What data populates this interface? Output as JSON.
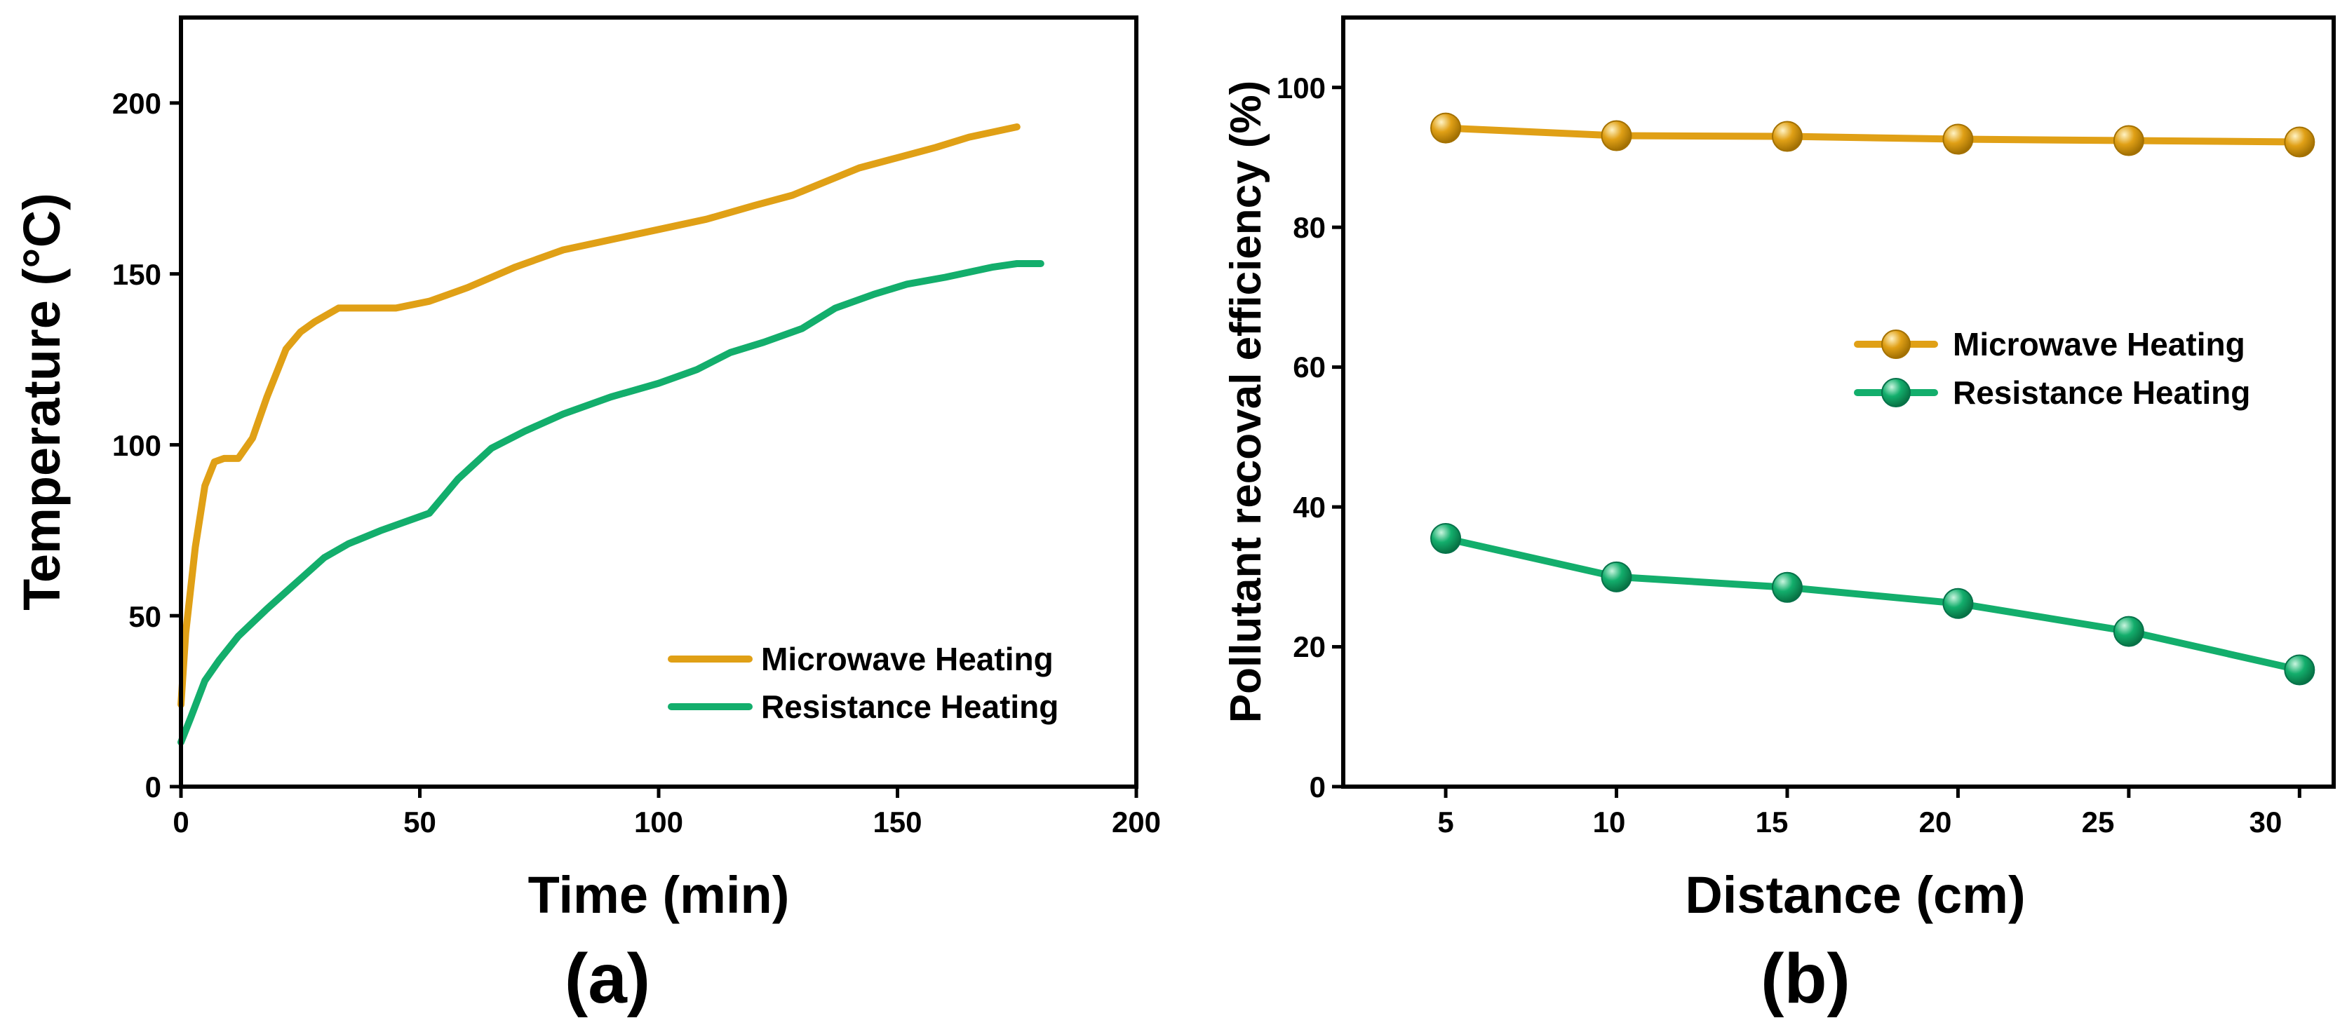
{
  "colors": {
    "microwave": "#E0A016",
    "resistance": "#13AE6C"
  },
  "chart_data": [
    {
      "panel": "(a)",
      "type": "line",
      "title": "",
      "xlabel": "Time (min)",
      "ylabel": "Temperature (°C)",
      "xlim": [
        0,
        200
      ],
      "ylim": [
        0,
        225
      ],
      "xticks": [
        0,
        50,
        100,
        150,
        200
      ],
      "yticks": [
        0,
        50,
        100,
        150,
        200
      ],
      "xtick_labels": [
        "0",
        "50",
        "100",
        "150",
        "200"
      ],
      "ytick_labels": [
        "0",
        "50",
        "100",
        "150",
        "200"
      ],
      "grid": false,
      "legend_position": "bottom-right",
      "series": [
        {
          "name": "Microwave Heating",
          "color": "#E0A016",
          "markers": false,
          "x": [
            0,
            1,
            3,
            5,
            7,
            9,
            12,
            15,
            18,
            22,
            25,
            28,
            33,
            38,
            45,
            52,
            60,
            70,
            80,
            90,
            100,
            110,
            120,
            128,
            135,
            142,
            150,
            158,
            165,
            175
          ],
          "y": [
            24,
            45,
            70,
            88,
            95,
            96,
            96,
            102,
            114,
            128,
            133,
            136,
            140,
            140,
            140,
            142,
            146,
            152,
            157,
            160,
            163,
            166,
            170,
            173,
            177,
            181,
            184,
            187,
            190,
            193
          ]
        },
        {
          "name": "Resistance Heating",
          "color": "#13AE6C",
          "markers": false,
          "x": [
            0,
            2,
            5,
            8,
            12,
            15,
            18,
            22,
            26,
            30,
            35,
            42,
            52,
            58,
            65,
            72,
            80,
            90,
            100,
            108,
            115,
            122,
            130,
            137,
            145,
            152,
            160,
            170,
            175,
            180
          ],
          "y": [
            13,
            20,
            31,
            37,
            44,
            48,
            52,
            57,
            62,
            67,
            71,
            75,
            80,
            90,
            99,
            104,
            109,
            114,
            118,
            122,
            127,
            130,
            134,
            140,
            144,
            147,
            149,
            152,
            153,
            153
          ]
        }
      ]
    },
    {
      "panel": "(b)",
      "type": "line",
      "title": "",
      "xlabel": "Distance (cm)",
      "ylabel": "Pollutant recoval efficiency (%)",
      "xlim": [
        2,
        31
      ],
      "ylim": [
        0,
        110
      ],
      "xticks": [
        5,
        10,
        15,
        20,
        25,
        30
      ],
      "yticks": [
        0,
        20,
        40,
        60,
        80,
        100
      ],
      "xtick_labels": [
        "5",
        "10",
        "15",
        "20",
        "25",
        "30"
      ],
      "ytick_labels": [
        "0",
        "20",
        "40",
        "60",
        "80",
        "100"
      ],
      "grid": false,
      "legend_position": "middle-right",
      "series": [
        {
          "name": "Microwave Heating",
          "color": "#E0A016",
          "markers": true,
          "x": [
            5,
            10,
            15,
            20,
            25,
            30
          ],
          "y": [
            94.2,
            93.1,
            93.0,
            92.6,
            92.4,
            92.2
          ]
        },
        {
          "name": "Resistance Heating",
          "color": "#13AE6C",
          "markers": true,
          "x": [
            5,
            10,
            15,
            20,
            25,
            30
          ],
          "y": [
            35.5,
            30.0,
            28.5,
            26.2,
            22.2,
            16.7
          ]
        }
      ]
    }
  ]
}
